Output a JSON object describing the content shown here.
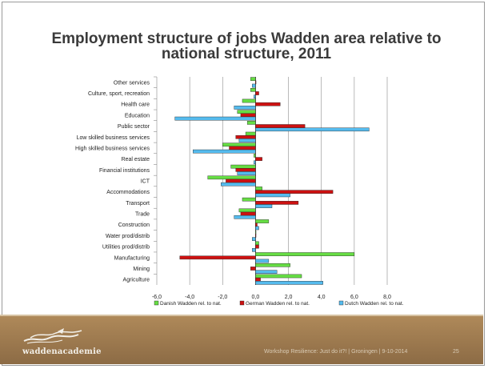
{
  "slide": {
    "title": "Employment structure of jobs Wadden area relative to national structure, 2011",
    "logo_text": "waddenacademie",
    "footer_text": "Workshop Resilience: Just do it?! | Groningen | 9-10-2014",
    "page_number": "25"
  },
  "colors": {
    "danish": "#66dd44",
    "german": "#cc1111",
    "dutch": "#55bbee",
    "grid": "#8c8c8c",
    "axis": "#333333"
  },
  "chart_data": {
    "type": "bar",
    "orientation": "horizontal",
    "title": "",
    "xlim": [
      -6,
      8
    ],
    "xticks": [
      "-6,0",
      "-4,0",
      "-2,0",
      "0,0",
      "2,0",
      "4,0",
      "6,0",
      "8,0"
    ],
    "grid": true,
    "legend_position": "bottom",
    "categories": [
      "Other services",
      "Culture, sport, recreation",
      "Health care",
      "Education",
      "Public sector",
      "Low skilled business services",
      "High skilled business services",
      "Real estate",
      "Financial institutions",
      "ICT",
      "Accommodations",
      "Transport",
      "Trade",
      "Construction",
      "Water prod/distrib",
      "Utilities prod/distrib",
      "Manufacturing",
      "Mining",
      "Agriculture"
    ],
    "series": [
      {
        "name": "Danish Wadden rel. to nat.",
        "color": "#66dd44",
        "values": [
          -0.3,
          -0.3,
          -0.8,
          -1.1,
          -0.5,
          -0.6,
          -2.0,
          -0.1,
          -1.5,
          -2.9,
          0.4,
          -0.8,
          -1.0,
          0.8,
          0.0,
          0.2,
          6.0,
          2.1,
          2.8
        ]
      },
      {
        "name": "German Wadden rel. to nat.",
        "color": "#cc1111",
        "values": [
          0.0,
          0.2,
          1.5,
          -0.9,
          3.0,
          -1.2,
          -1.6,
          0.4,
          -1.2,
          -1.8,
          4.7,
          2.6,
          -0.9,
          0.1,
          0.0,
          0.2,
          -4.6,
          -0.3,
          0.3
        ]
      },
      {
        "name": "Dutch Wadden rel. to nat.",
        "color": "#55bbee",
        "values": [
          -0.2,
          -0.1,
          -1.3,
          -4.9,
          6.9,
          -1.0,
          -3.8,
          -0.1,
          -1.1,
          -2.1,
          2.1,
          1.0,
          -1.3,
          0.2,
          -0.2,
          -0.2,
          0.8,
          1.3,
          4.1
        ]
      }
    ]
  }
}
